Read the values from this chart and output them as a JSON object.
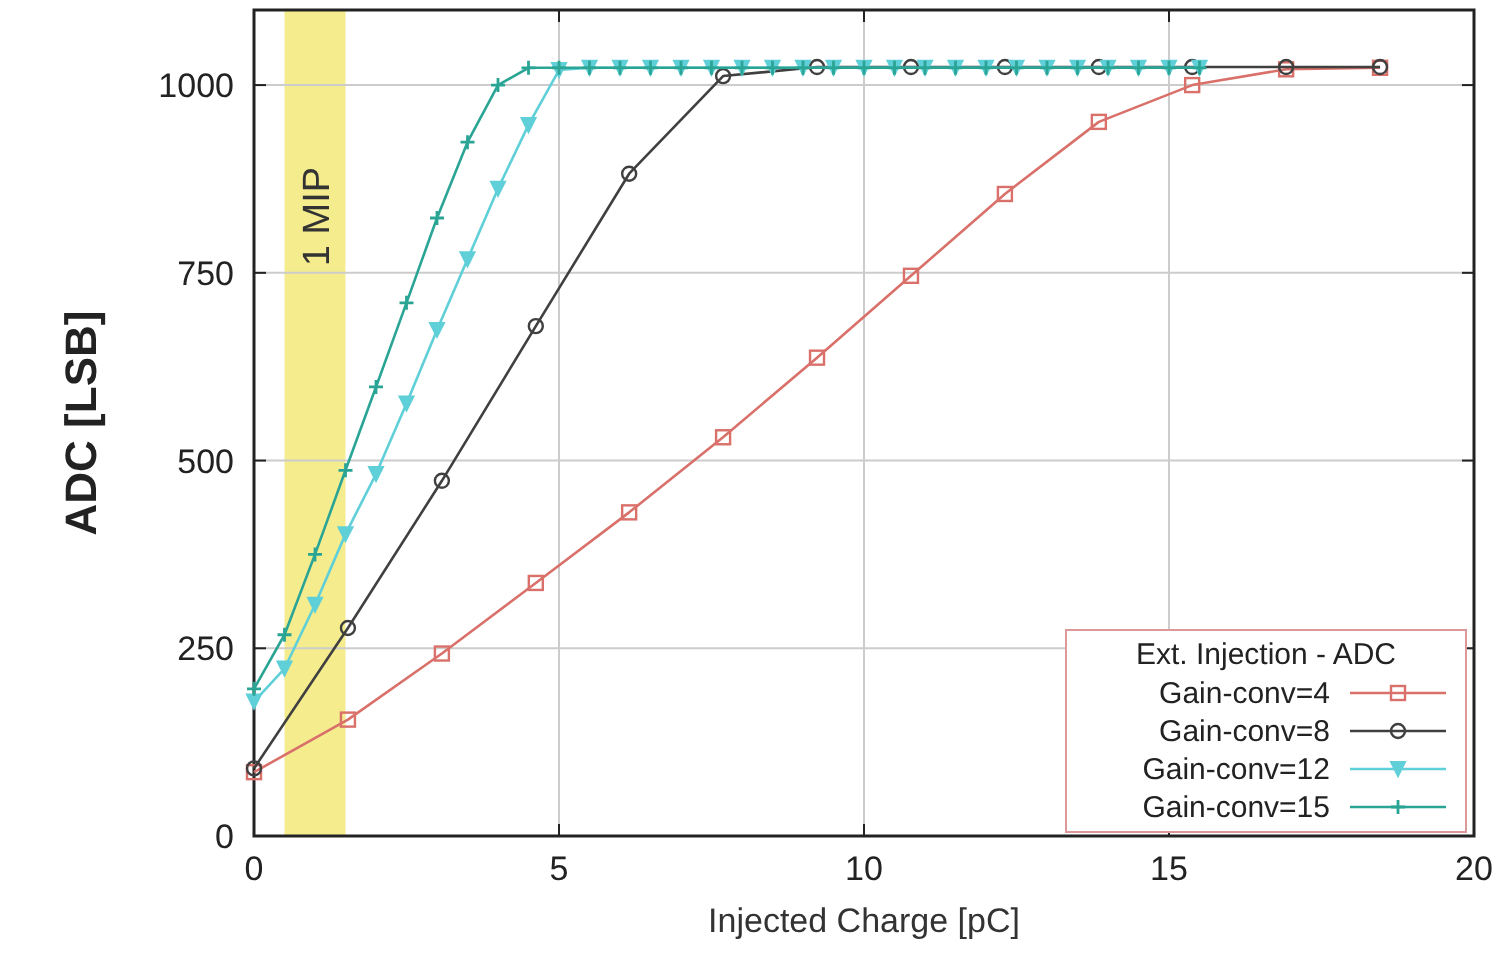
{
  "chart_data": {
    "type": "line",
    "xlabel": "Injected Charge [pC]",
    "ylabel": "ADC [LSB]",
    "legend_title": "Ext. Injection - ADC",
    "xlim": [
      0,
      20
    ],
    "ylim": [
      0,
      1100
    ],
    "xticks": [
      0,
      5,
      10,
      15,
      20
    ],
    "yticks": [
      0,
      250,
      500,
      750,
      1000
    ],
    "grid": true,
    "legend": "bottom right",
    "line_style": "solid",
    "bands": [
      {
        "axis": "x",
        "from": 0.5,
        "to": 1.5,
        "label": "1 MIP",
        "color": "#f3e97a"
      }
    ],
    "series": [
      {
        "name": "Gain-conv=4",
        "color": "#d9706a",
        "marker": "square",
        "x": [
          0,
          1.54,
          3.08,
          4.62,
          6.15,
          7.69,
          9.23,
          10.77,
          12.31,
          13.85,
          15.38,
          16.92,
          18.46
        ],
        "values": [
          85,
          155,
          243,
          337,
          431,
          531,
          637,
          746,
          855,
          951,
          1000,
          1021,
          1023
        ]
      },
      {
        "name": "Gain-conv=8",
        "color": "#404040",
        "marker": "circle",
        "x": [
          0,
          1.54,
          3.08,
          4.62,
          6.15,
          7.69,
          9.23,
          10.77,
          12.31,
          13.85,
          15.38,
          16.92,
          18.46
        ],
        "values": [
          90,
          277,
          473,
          679,
          882,
          1012,
          1024,
          1024,
          1024,
          1024,
          1024,
          1024,
          1024
        ]
      },
      {
        "name": "Gain-conv=12",
        "color": "#5fcfd8",
        "marker": "triangle",
        "x": [
          0,
          0.5,
          1,
          1.5,
          2,
          2.5,
          3,
          3.5,
          4,
          4.5,
          5,
          5.5,
          6,
          6.5,
          7,
          7.5,
          8,
          8.5,
          9,
          9.5,
          10,
          10.5,
          11,
          11.5,
          12,
          12.5,
          13,
          13.5,
          14,
          14.5,
          15,
          15.5
        ],
        "values": [
          179,
          223,
          308,
          402,
          482,
          576,
          674,
          768,
          862,
          947,
          1020,
          1023,
          1023,
          1023,
          1023,
          1023,
          1023,
          1023,
          1023,
          1023,
          1023,
          1023,
          1023,
          1023,
          1023,
          1023,
          1023,
          1023,
          1023,
          1023,
          1023,
          1023
        ]
      },
      {
        "name": "Gain-conv=15",
        "color": "#2aa595",
        "marker": "cross",
        "x": [
          0,
          0.5,
          1,
          1.5,
          2,
          2.5,
          3,
          3.5,
          4,
          4.5,
          5,
          5.5,
          6,
          6.5,
          7,
          7.5,
          8,
          8.5,
          9,
          9.5,
          10,
          10.5,
          11,
          11.5,
          12,
          12.5,
          13,
          13.5,
          14,
          14.5,
          15,
          15.5
        ],
        "values": [
          196,
          268,
          375,
          487,
          598,
          710,
          823,
          924,
          1000,
          1023,
          1023,
          1023,
          1023,
          1023,
          1023,
          1023,
          1023,
          1023,
          1023,
          1023,
          1023,
          1023,
          1023,
          1023,
          1023,
          1023,
          1023,
          1023,
          1023,
          1023,
          1023,
          1023
        ]
      }
    ]
  }
}
